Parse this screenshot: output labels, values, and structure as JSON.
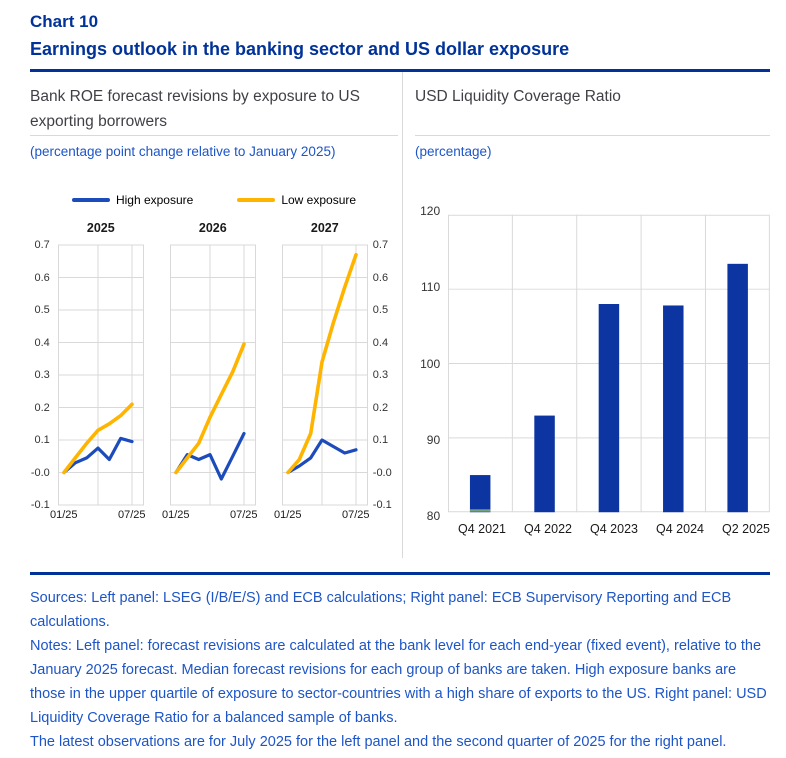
{
  "header": {
    "chart_number": "Chart 10",
    "title": "Earnings outlook in the banking sector and US dollar exposure"
  },
  "left_panel": {
    "title": "Bank ROE forecast revisions by exposure to US exporting borrowers",
    "subtitle": "(percentage point change relative to January 2025)"
  },
  "right_panel": {
    "title": "USD Liquidity Coverage Ratio",
    "subtitle": "(percentage)"
  },
  "colors": {
    "heading_blue": "#003299",
    "label_blue": "#1d55c8",
    "panel_title_gray": "#3f3f46",
    "grid": "#d9d9d9",
    "high_exposure_line": "#1c4bbc",
    "low_exposure_line": "#ffb400",
    "bar_blue": "#0d35a1"
  },
  "chart_data": [
    {
      "type": "line",
      "panel": "left",
      "layout": "small-multiples",
      "title": "Bank ROE forecast revisions by exposure to US exporting borrowers",
      "unit_label": "(percentage point change relative to January 2025)",
      "x_monthly": [
        "01/25",
        "02/25",
        "03/25",
        "04/25",
        "05/25",
        "06/25",
        "07/25"
      ],
      "x_axis_labels": {
        "start": "01/25",
        "end": "07/25"
      },
      "ylim": [
        -0.1,
        0.7
      ],
      "ytick_step": 0.1,
      "grid": true,
      "legend_position": "top",
      "series_meta": [
        {
          "name": "High exposure",
          "color": "#1c4bbc"
        },
        {
          "name": "Low exposure",
          "color": "#ffb400"
        }
      ],
      "subplots": [
        {
          "title": "2025",
          "high_exposure": [
            0.0,
            0.03,
            0.045,
            0.075,
            0.04,
            0.105,
            0.095
          ],
          "low_exposure": [
            0.0,
            0.045,
            0.09,
            0.13,
            0.15,
            0.175,
            0.21
          ]
        },
        {
          "title": "2026",
          "high_exposure": [
            0.0,
            0.055,
            0.04,
            0.055,
            -0.02,
            0.05,
            0.12
          ],
          "low_exposure": [
            0.0,
            0.045,
            0.09,
            0.17,
            0.24,
            0.31,
            0.395
          ]
        },
        {
          "title": "2027",
          "high_exposure": [
            0.0,
            0.02,
            0.045,
            0.1,
            0.08,
            0.06,
            0.07
          ],
          "low_exposure": [
            0.0,
            0.04,
            0.12,
            0.34,
            0.46,
            0.57,
            0.67
          ]
        }
      ]
    },
    {
      "type": "bar",
      "panel": "right",
      "title": "USD Liquidity Coverage Ratio",
      "unit_label": "(percentage)",
      "categories": [
        "Q4 2021",
        "Q4 2022",
        "Q4 2023",
        "Q4 2024",
        "Q2 2025"
      ],
      "values": [
        85,
        93,
        108,
        107.8,
        113.4
      ],
      "ylim": [
        80,
        120
      ],
      "yticks": [
        80,
        90,
        100,
        110,
        120
      ],
      "grid": true,
      "bar_color": "#0d35a1",
      "first_bar_base_sliver_color": "#77a37a"
    }
  ],
  "footer": {
    "sources": "Sources: Left panel: LSEG (I/B/E/S) and ECB calculations; Right panel: ECB Supervisory Reporting and ECB calculations.",
    "notes": "Notes: Left panel: forecast revisions are calculated at the bank level for each end-year (fixed event), relative to the January 2025 forecast. Median forecast revisions for each group of banks are taken. High exposure banks are those in the upper quartile of exposure to sector-countries with a high share of exports to the US. Right panel: USD Liquidity Coverage Ratio for a balanced sample of banks.",
    "latest": "The latest observations are for July 2025 for the left panel and the second quarter of 2025 for the right panel."
  }
}
